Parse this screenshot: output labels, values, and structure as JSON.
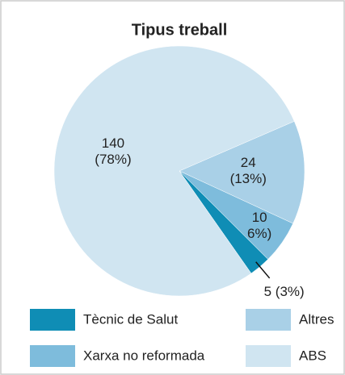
{
  "chart_data": {
    "type": "pie",
    "title": "Tipus treball",
    "categories": [
      "Tècnic de Salut",
      "Xarxa no reformada",
      "Altres",
      "ABS"
    ],
    "values": [
      5,
      10,
      24,
      140
    ],
    "value_labels": [
      [
        "5 (3%)"
      ],
      [
        "10",
        "6%)"
      ],
      [
        "24",
        "(13%)"
      ],
      [
        "140",
        "(78%)"
      ]
    ],
    "colors": [
      "#0f8db5",
      "#7ebcdc",
      "#a9d0e7",
      "#d0e5f1"
    ]
  }
}
